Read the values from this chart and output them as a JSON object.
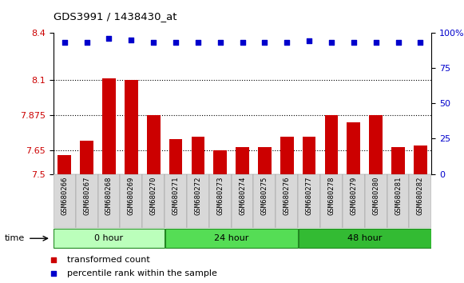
{
  "title": "GDS3991 / 1438430_at",
  "samples": [
    "GSM680266",
    "GSM680267",
    "GSM680268",
    "GSM680269",
    "GSM680270",
    "GSM680271",
    "GSM680272",
    "GSM680273",
    "GSM680274",
    "GSM680275",
    "GSM680276",
    "GSM680277",
    "GSM680278",
    "GSM680279",
    "GSM680280",
    "GSM680281",
    "GSM680282"
  ],
  "bar_values": [
    7.62,
    7.71,
    8.11,
    8.1,
    7.875,
    7.72,
    7.735,
    7.65,
    7.67,
    7.67,
    7.74,
    7.74,
    7.875,
    7.83,
    7.875,
    7.67,
    7.68
  ],
  "percentile_values": [
    93,
    93,
    96,
    95,
    93,
    93,
    93,
    93,
    93,
    93,
    93,
    94,
    93,
    93,
    93,
    93,
    93
  ],
  "bar_color": "#cc0000",
  "dot_color": "#0000cc",
  "ymin": 7.5,
  "ymax": 8.4,
  "yticks_left": [
    7.5,
    7.65,
    7.875,
    8.1,
    8.4
  ],
  "yticks_right": [
    0,
    25,
    50,
    75,
    100
  ],
  "groups": [
    {
      "label": "0 hour",
      "start": 0,
      "end": 5,
      "color": "#bbffbb"
    },
    {
      "label": "24 hour",
      "start": 5,
      "end": 11,
      "color": "#55dd55"
    },
    {
      "label": "48 hour",
      "start": 11,
      "end": 17,
      "color": "#33bb33"
    }
  ],
  "xlabel_color": "#cc0000",
  "ylabel_right_color": "#0000cc",
  "bar_bottom": 7.5,
  "legend_items": [
    {
      "label": "transformed count",
      "color": "#cc0000"
    },
    {
      "label": "percentile rank within the sample",
      "color": "#0000cc"
    }
  ]
}
